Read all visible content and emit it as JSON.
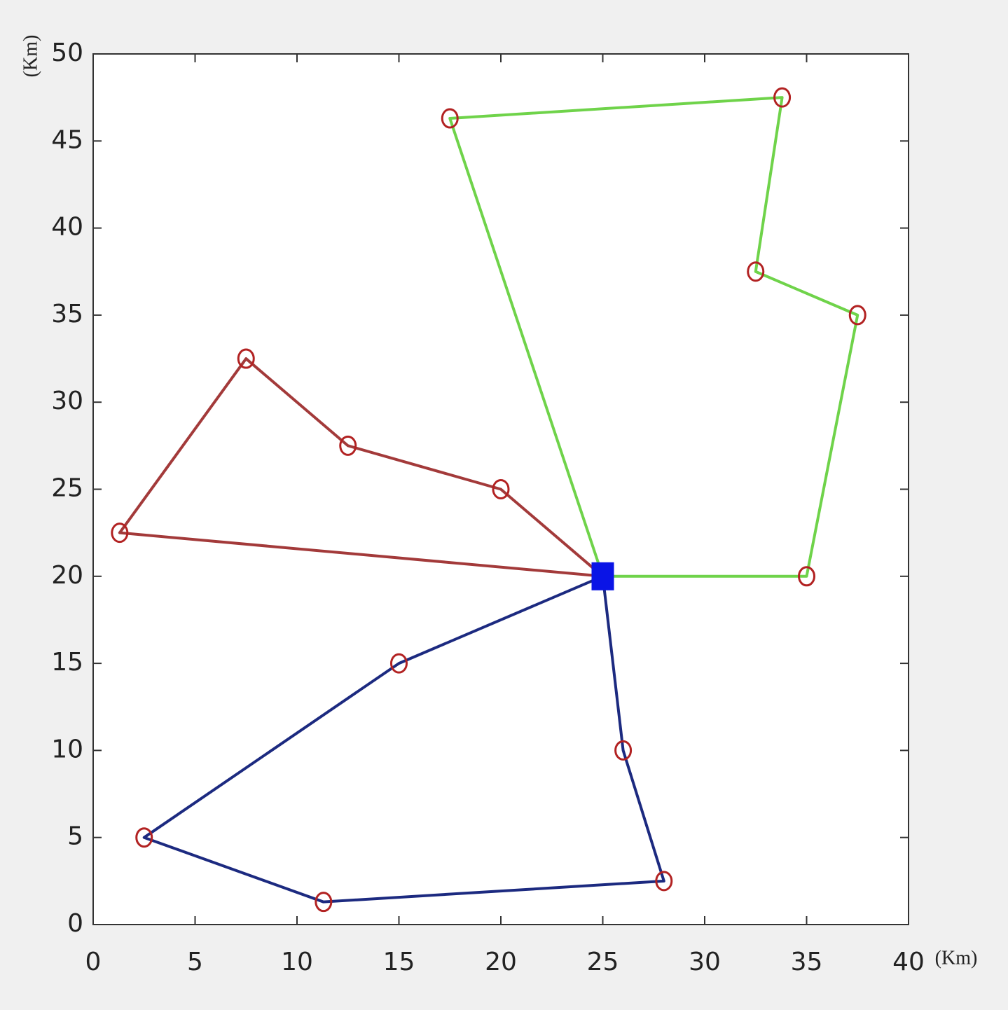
{
  "chart_data": {
    "type": "line",
    "xlabel": "(Km)",
    "ylabel": "(Km)",
    "xlim": [
      0,
      40
    ],
    "xticks": [
      0,
      5,
      10,
      15,
      20,
      25,
      30,
      35,
      40
    ],
    "ylim": [
      0,
      50
    ],
    "yticks": [
      0,
      5,
      10,
      15,
      20,
      25,
      30,
      35,
      40,
      45,
      50
    ],
    "grid": false,
    "marker_color": "#b22222",
    "depot": {
      "x": 25,
      "y": 20,
      "color": "#0a14e6"
    },
    "series": [
      {
        "color": "#6fd34a",
        "x": [
          25,
          35,
          37.5,
          32.5,
          33.8,
          17.5,
          25
        ],
        "values": [
          20,
          20,
          35,
          37.5,
          47.5,
          46.3,
          20
        ]
      },
      {
        "color": "#a33a3a",
        "x": [
          25,
          20,
          12.5,
          7.5,
          1.3,
          25
        ],
        "values": [
          20,
          25,
          27.5,
          32.5,
          22.5,
          20
        ]
      },
      {
        "color": "#1c2a80",
        "x": [
          25,
          15,
          2.5,
          11.3,
          28,
          26,
          25
        ],
        "values": [
          20,
          15,
          5,
          1.3,
          2.5,
          10,
          20
        ]
      }
    ]
  }
}
